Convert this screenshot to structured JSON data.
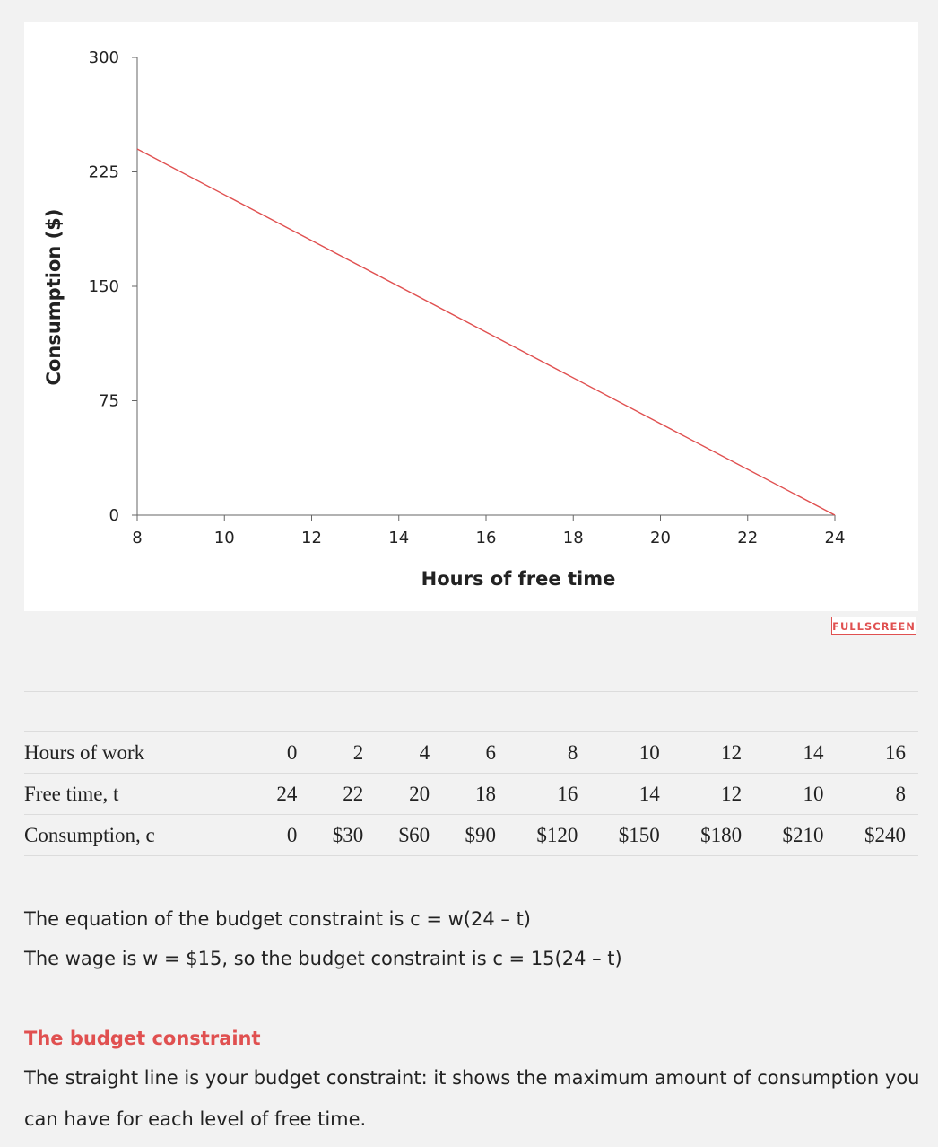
{
  "chart_data": {
    "type": "line",
    "xlabel": "Hours of free time",
    "ylabel": "Consumption ($)",
    "xlim": [
      8,
      24
    ],
    "ylim": [
      0,
      300
    ],
    "x_ticks": [
      "8",
      "10",
      "12",
      "14",
      "16",
      "18",
      "20",
      "22",
      "24"
    ],
    "y_ticks": [
      "0",
      "75",
      "150",
      "225",
      "300"
    ],
    "grid": false,
    "series": [
      {
        "x": [
          8,
          24
        ],
        "y": [
          240,
          0
        ],
        "color": "#e05050"
      }
    ]
  },
  "fullscreen_label": "FULLSCREEN",
  "table": {
    "rows": [
      {
        "label": "Hours of work",
        "values": [
          "0",
          "2",
          "4",
          "6",
          "8",
          "10",
          "12",
          "14",
          "16"
        ]
      },
      {
        "label": "Free time, t",
        "values": [
          "24",
          "22",
          "20",
          "18",
          "16",
          "14",
          "12",
          "10",
          "8"
        ]
      },
      {
        "label": "Consumption, c",
        "values": [
          "0",
          "$30",
          "$60",
          "$90",
          "$120",
          "$150",
          "$180",
          "$210",
          "$240"
        ]
      }
    ]
  },
  "equation_line1": "The equation of the budget constraint is c = w(24 – t)",
  "equation_line2": "The wage is w = $15, so the budget constraint is c = 15(24 – t)",
  "heading": "The budget constraint",
  "description": "The straight line is your budget constraint: it shows the maximum amount of consumption you can have for each level of free time."
}
